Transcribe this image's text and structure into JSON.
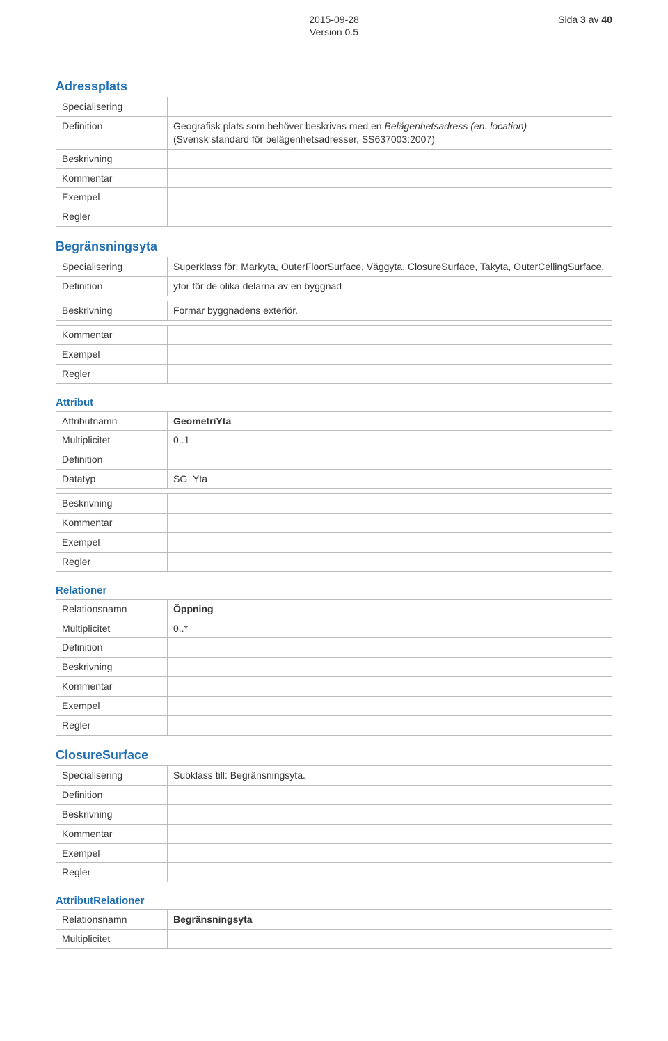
{
  "header": {
    "date": "2015-09-28",
    "page_prefix": "Sida ",
    "page_current": "3",
    "page_sep": " av ",
    "page_total": "40",
    "version": "Version 0.5"
  },
  "labels": {
    "specialisering": "Specialisering",
    "definition": "Definition",
    "beskrivning": "Beskrivning",
    "kommentar": "Kommentar",
    "exempel": "Exempel",
    "regler": "Regler",
    "attributnamn": "Attributnamn",
    "multiplicitet": "Multiplicitet",
    "datatyp": "Datatyp",
    "relationsnamn": "Relationsnamn"
  },
  "sections": {
    "adressplats": {
      "title": "Adressplats",
      "definition_pre": "Geografisk plats som behöver beskrivas med en ",
      "definition_em": "Belägenhetsadress (en. location)",
      "definition_post": "(Svensk standard för belägenhetsadresser, SS637003:2007)"
    },
    "begransningsyta": {
      "title": "Begränsningsyta",
      "specialisering": "Superklass för: Markyta, OuterFloorSurface, Väggyta, ClosureSurface, Takyta, OuterCellingSurface.",
      "definition": "ytor för de olika delarna av en byggnad",
      "beskrivning": "Formar byggnadens exteriör."
    },
    "attribut": {
      "title": "Attribut",
      "attributnamn": "GeometriYta",
      "multiplicitet": "0..1",
      "datatyp": "SG_Yta"
    },
    "relationer": {
      "title": "Relationer",
      "relationsnamn": "Öppning",
      "multiplicitet": "0..*"
    },
    "closuresurface": {
      "title": "ClosureSurface",
      "specialisering": "Subklass till: Begränsningsyta."
    },
    "attributrelationer": {
      "title": "AttributRelationer",
      "relationsnamn": "Begränsningsyta"
    }
  }
}
